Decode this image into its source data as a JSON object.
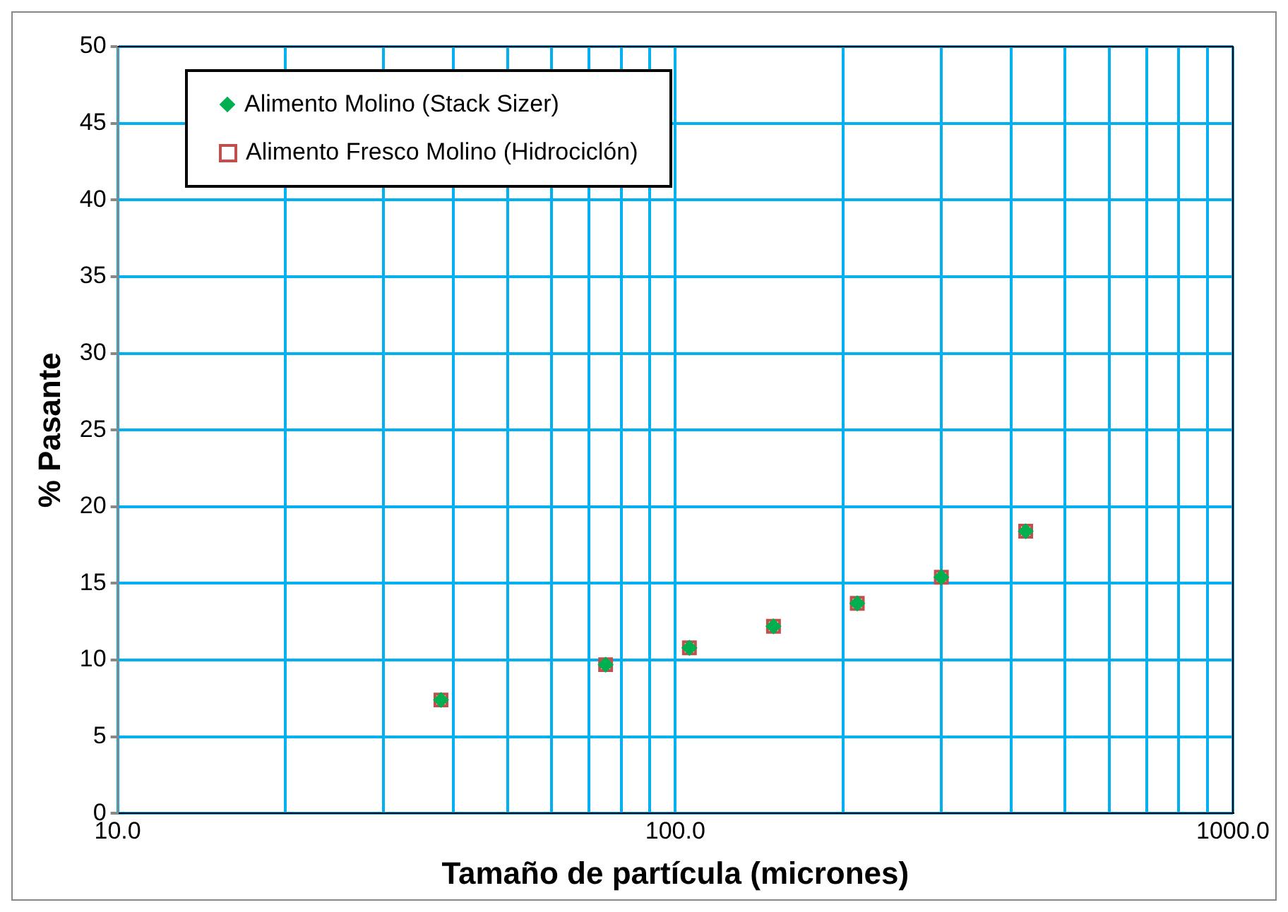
{
  "chart_data": {
    "type": "scatter",
    "xlabel": "Tamaño de partícula (micrones)",
    "ylabel": "% Pasante",
    "log": "x",
    "grid": true,
    "legend": "top left",
    "x": [
      38,
      75,
      106,
      150,
      212,
      300,
      425
    ],
    "series": [
      {
        "name": "Alimento Molino (Stack Sizer)",
        "color": "#00b050",
        "marker": "diamond",
        "values": [
          7.4,
          9.7,
          10.8,
          12.2,
          13.7,
          15.4,
          18.4
        ]
      },
      {
        "name": "Alimento Fresco Molino (Hidrociclón)",
        "color": "#c0504d",
        "marker": "square",
        "values": [
          7.4,
          9.7,
          10.8,
          12.2,
          13.7,
          15.4,
          18.4
        ]
      }
    ],
    "xlim": [
      10,
      1000
    ],
    "xticks": [
      {
        "value": 10,
        "label": "10.0"
      },
      {
        "value": 20,
        "label": null
      },
      {
        "value": 30,
        "label": null
      },
      {
        "value": 40,
        "label": null
      },
      {
        "value": 50,
        "label": null
      },
      {
        "value": 60,
        "label": null
      },
      {
        "value": 70,
        "label": null
      },
      {
        "value": 80,
        "label": null
      },
      {
        "value": 90,
        "label": null
      },
      {
        "value": 100,
        "label": "100.0"
      },
      {
        "value": 200,
        "label": null
      },
      {
        "value": 300,
        "label": null
      },
      {
        "value": 400,
        "label": null
      },
      {
        "value": 500,
        "label": null
      },
      {
        "value": 600,
        "label": null
      },
      {
        "value": 700,
        "label": null
      },
      {
        "value": 800,
        "label": null
      },
      {
        "value": 900,
        "label": null
      },
      {
        "value": 1000,
        "label": "1000.0"
      }
    ],
    "ylim": [
      0,
      50
    ],
    "yticks": [
      0,
      5,
      10,
      15,
      20,
      25,
      30,
      35,
      40,
      45,
      50
    ]
  }
}
